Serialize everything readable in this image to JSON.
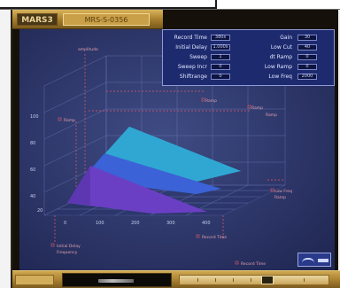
{
  "header": {
    "tag": "MARS3",
    "tab": "MRS-S-0356"
  },
  "params": {
    "left": [
      {
        "label": "Record Time",
        "value": "380s"
      },
      {
        "label": "Initial Delay",
        "value": "1.000s"
      },
      {
        "label": "Sweep",
        "value": "1"
      },
      {
        "label": "Sweep Incr",
        "value": "0"
      },
      {
        "label": "Shiftrange",
        "value": "0"
      }
    ],
    "right": [
      {
        "label": "Gain",
        "value": "30"
      },
      {
        "label": "Low Cut",
        "value": "40"
      },
      {
        "label": "dt Ramp",
        "value": "0"
      },
      {
        "label": "Low Ramp",
        "value": "0"
      },
      {
        "label": "Low Freq",
        "value": "2000"
      }
    ]
  },
  "chart_labels": {
    "top_left": "amplitude",
    "label_mid_right_1": "Ramp",
    "label_mid_right_2": "Ramp",
    "label_right_1": "Ramp",
    "label_right_2": "Ramp",
    "label_low_right_1": "Low Freq",
    "label_low_right_2": "Ramp",
    "bottom_left_1": "Initial Delay",
    "bottom_left_2": "Frequency",
    "bottom_mid": "Record Time",
    "bottom_right": "Record Time"
  },
  "x_ticks": [
    "0",
    "100",
    "200",
    "300",
    "400"
  ],
  "y_ticks": [
    "100",
    "80",
    "60",
    "40",
    "20"
  ],
  "colors": {
    "screen": "#2d3668",
    "back_layer": "#33b8dd",
    "mid_layer": "#3d69d6",
    "front_layer": "#6c3fbf",
    "grid": "#7b86c9",
    "gold": "#c99f47"
  },
  "footer": {
    "display_text": "",
    "slider_level": 0.6
  }
}
